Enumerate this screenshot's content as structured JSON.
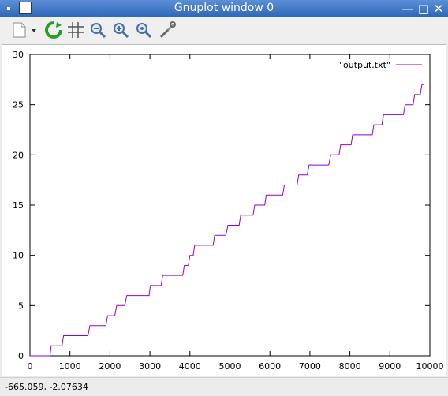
{
  "window": {
    "title": "Gnuplot window 0",
    "titlebar_color": "#3a72c4"
  },
  "toolbar": {
    "icons": [
      "export-icon",
      "replot-icon",
      "grid-icon",
      "zoom-previous-icon",
      "zoom-next-icon",
      "autoscale-icon",
      "settings-icon"
    ]
  },
  "status": {
    "coords": "-665.059, -2.07634"
  },
  "chart_data": {
    "type": "line",
    "xlim": [
      0,
      10000
    ],
    "ylim": [
      0,
      30
    ],
    "xticks": [
      "0",
      "1000",
      "2000",
      "3000",
      "4000",
      "5000",
      "6000",
      "7000",
      "8000",
      "9000",
      "10000"
    ],
    "yticks": [
      "0",
      "5",
      "10",
      "15",
      "20",
      "25",
      "30"
    ],
    "grid": false,
    "legend_position": "top-right",
    "series": [
      {
        "name": "\"output.txt\"",
        "color": "#9400d3",
        "x": [
          0,
          500,
          530,
          800,
          840,
          1150,
          1200,
          1450,
          1500,
          1740,
          1780,
          1900,
          1940,
          2120,
          2170,
          2370,
          2420,
          2620,
          2660,
          2980,
          3010,
          3180,
          3230,
          3280,
          3320,
          3700,
          3730,
          3820,
          3860,
          3960,
          4000,
          4080,
          4120,
          4450,
          4490,
          4580,
          4620,
          4900,
          4950,
          5230,
          5270,
          5580,
          5620,
          5870,
          5910,
          6100,
          6140,
          6320,
          6360,
          6680,
          6720,
          6930,
          6980,
          7180,
          7220,
          7470,
          7520,
          7730,
          7770,
          8030,
          8070,
          8350,
          8400,
          8560,
          8600,
          8800,
          8840,
          9100,
          9140,
          9340,
          9380,
          9580,
          9620,
          9760,
          9800,
          9860
        ],
        "y": [
          0,
          0,
          1,
          1,
          2,
          2,
          2,
          2,
          3,
          3,
          3,
          3,
          4,
          4,
          5,
          5,
          6,
          6,
          6,
          6,
          7,
          7,
          7,
          7,
          8,
          8,
          8,
          8,
          9,
          9,
          10,
          10,
          11,
          11,
          11,
          11,
          12,
          12,
          13,
          13,
          14,
          14,
          15,
          15,
          16,
          16,
          16,
          16,
          17,
          17,
          18,
          18,
          19,
          19,
          19,
          19,
          20,
          20,
          21,
          21,
          22,
          22,
          22,
          22,
          23,
          23,
          24,
          24,
          24,
          24,
          25,
          25,
          26,
          26,
          27,
          27
        ]
      }
    ]
  }
}
